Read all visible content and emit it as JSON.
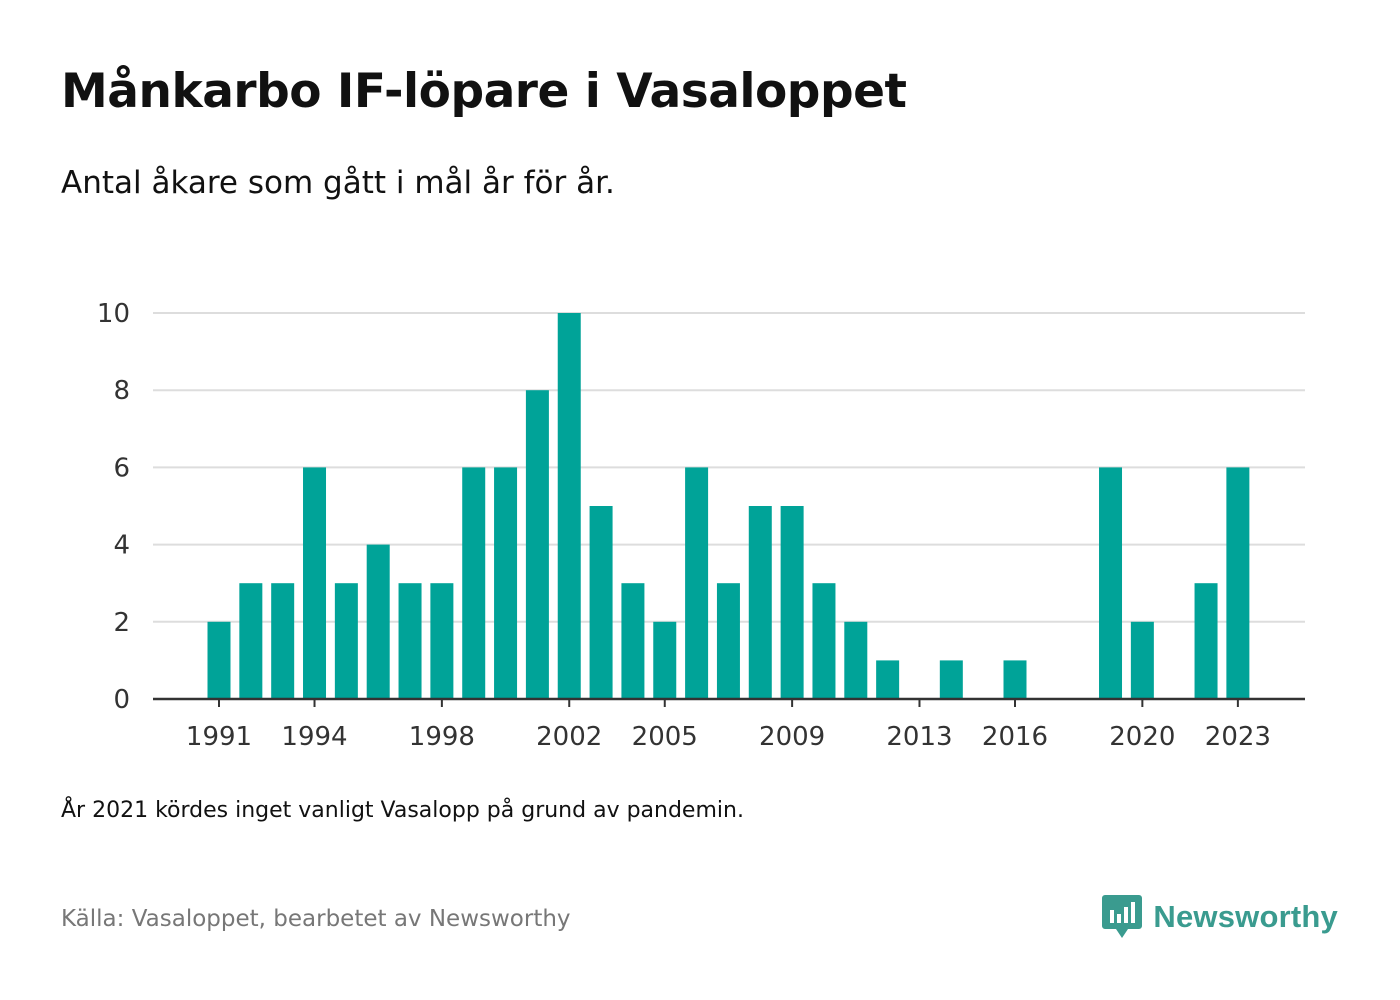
{
  "title": "Månkarbo IF-löpare i Vasaloppet",
  "subtitle": "Antal åkare som gått i mål år för år.",
  "note": "År 2021 kördes inget vanligt Vasalopp på grund av pandemin.",
  "source": "Källa: Vasaloppet, bearbetet av Newsworthy",
  "brand": {
    "name": "Newsworthy",
    "icon": "newsworthy-logo-icon",
    "color": "#3a9b8f"
  },
  "chart_data": {
    "type": "bar",
    "title": "Månkarbo IF-löpare i Vasaloppet",
    "subtitle": "Antal åkare som gått i mål år för år.",
    "xlabel": "",
    "ylabel": "",
    "ylim": [
      0,
      10
    ],
    "yticks": [
      0,
      2,
      4,
      6,
      8,
      10
    ],
    "grid": true,
    "bar_color": "#00a398",
    "categories": [
      1991,
      1992,
      1993,
      1994,
      1995,
      1996,
      1997,
      1998,
      1999,
      2000,
      2001,
      2002,
      2003,
      2004,
      2005,
      2006,
      2007,
      2008,
      2009,
      2010,
      2011,
      2012,
      2013,
      2014,
      2015,
      2016,
      2017,
      2018,
      2019,
      2020,
      2021,
      2022,
      2023
    ],
    "values": [
      2,
      3,
      3,
      6,
      3,
      4,
      3,
      3,
      6,
      6,
      8,
      10,
      5,
      3,
      2,
      6,
      3,
      5,
      5,
      3,
      2,
      1,
      0,
      1,
      0,
      1,
      0,
      0,
      6,
      2,
      0,
      3,
      6
    ],
    "xtick_labels": [
      "1991",
      "1994",
      "1998",
      "2002",
      "2005",
      "2009",
      "2013",
      "2016",
      "2020",
      "2023"
    ]
  }
}
